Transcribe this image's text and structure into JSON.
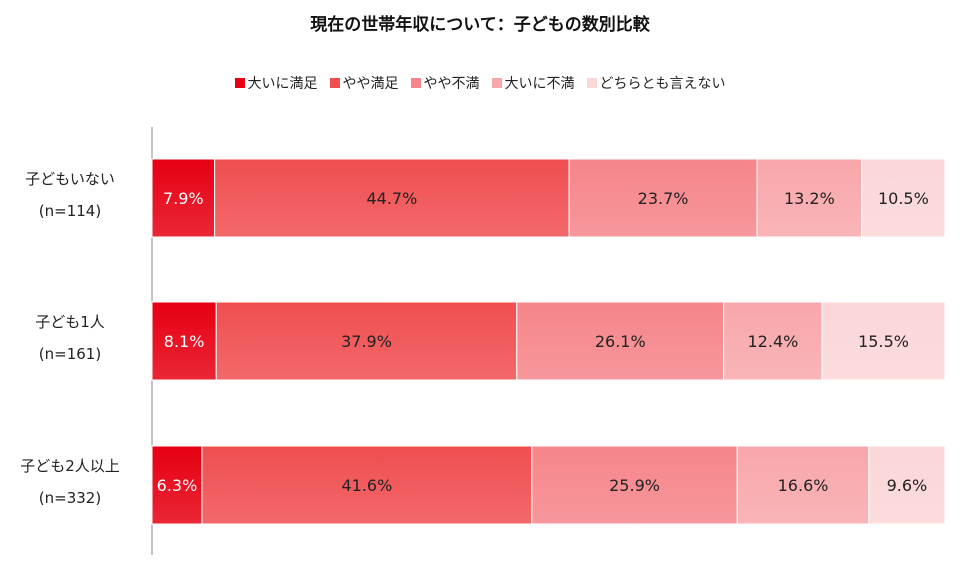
{
  "chart_data": {
    "type": "bar",
    "orientation": "horizontal",
    "stacked": true,
    "title": "現在の世帯年収について：子どもの数別比較",
    "legend_position": "top",
    "categories": [
      {
        "name": "子どもいない",
        "n": "(n=114)"
      },
      {
        "name": "子ども1人",
        "n": "(n=161)"
      },
      {
        "name": "子ども2人以上",
        "n": "(n=332)"
      }
    ],
    "series": [
      {
        "name": "大いに満足",
        "color": "#e60012",
        "values": [
          7.9,
          8.1,
          6.3
        ],
        "labels": [
          "7.9%",
          "8.1%",
          "6.3%"
        ],
        "label_color": "#ffffff"
      },
      {
        "name": "やや満足",
        "color": "#f04e50",
        "values": [
          44.7,
          37.9,
          41.6
        ],
        "labels": [
          "44.7%",
          "37.9%",
          "41.6%"
        ],
        "label_color": "#222222"
      },
      {
        "name": "やや不満",
        "color": "#f5858a",
        "values": [
          23.7,
          26.1,
          25.9
        ],
        "labels": [
          "23.7%",
          "26.1%",
          "25.9%"
        ],
        "label_color": "#222222"
      },
      {
        "name": "大いに不満",
        "color": "#f8a7ab",
        "values": [
          13.2,
          12.4,
          16.6
        ],
        "labels": [
          "13.2%",
          "12.4%",
          "16.6%"
        ],
        "label_color": "#222222"
      },
      {
        "name": "どちらとも言えない",
        "color": "#fbd6d7",
        "values": [
          10.5,
          15.5,
          9.6
        ],
        "labels": [
          "10.5%",
          "15.5%",
          "9.6%"
        ],
        "label_color": "#222222"
      }
    ],
    "xlim": [
      0,
      100
    ]
  }
}
